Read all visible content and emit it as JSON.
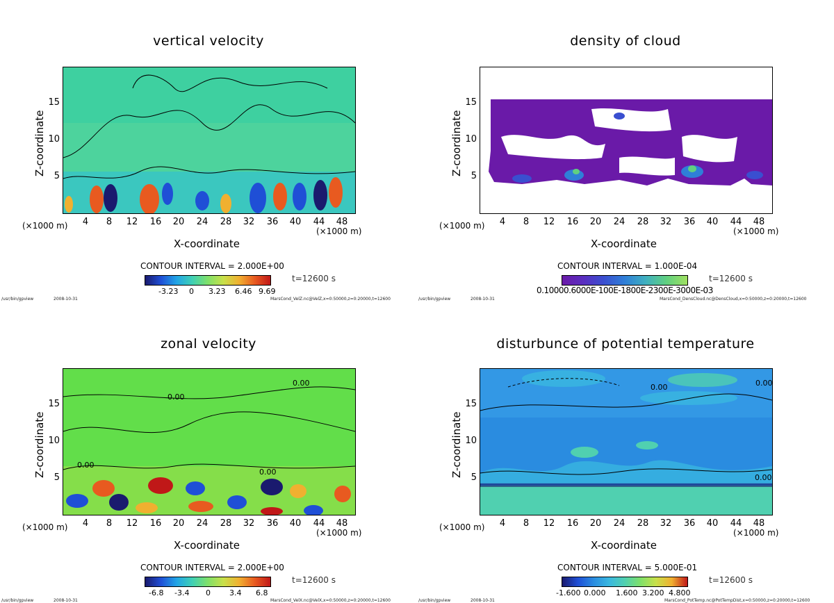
{
  "footer_program": "/usr/bin/gpview",
  "footer_date": "2008-10-31",
  "x_axis": {
    "label": "X-coordinate",
    "unit_left": "(×1000 m)",
    "unit_right": "(×1000 m)",
    "ticks": [
      "4",
      "8",
      "12",
      "16",
      "20",
      "24",
      "28",
      "32",
      "36",
      "40",
      "44",
      "48"
    ]
  },
  "y_axis": {
    "label": "Z-coordinate",
    "ticks": [
      "5",
      "10",
      "15"
    ]
  },
  "time_label": "t=12600 s",
  "chart_data": [
    {
      "type": "heatmap",
      "title": "vertical velocity",
      "xlabel": "X-coordinate",
      "ylabel": "Z-coordinate",
      "xlim": [
        0,
        50
      ],
      "ylim": [
        0,
        20
      ],
      "contour_interval": "CONTOUR INTERVAL = 2.000E+00",
      "colorbar_ticks": [
        "-3.23",
        "0",
        "3.23",
        "6.46",
        "9.69"
      ],
      "colormap": [
        "#1a1a6e",
        "#1f4fd6",
        "#21a4e6",
        "#3fd0b5",
        "#7fe06a",
        "#c8e04a",
        "#f0b030",
        "#e85a20",
        "#c01818"
      ],
      "background": "#3ed0a0",
      "footer_file": "MarsCond_VelZ.nc@VelZ,x=0:50000,z=0:20000,t=12600"
    },
    {
      "type": "heatmap",
      "title": "density of cloud",
      "xlabel": "X-coordinate",
      "ylabel": "Z-coordinate",
      "xlim": [
        0,
        50
      ],
      "ylim": [
        0,
        20
      ],
      "contour_interval": "CONTOUR INTERVAL = 1.000E-04",
      "colorbar_ticks_text": "0.10000.6000E-100E-1800E-2300E-3000E-03",
      "colormap": [
        "#6a1aa8",
        "#5a2dc0",
        "#3a4fd0",
        "#2f7fd8",
        "#3fb0c0",
        "#60d080",
        "#a0e060"
      ],
      "background": "#ffffff",
      "footer_file": "MarsCond_DensCloud.nc@DensCloud,x=0:50000,z=0:20000,t=12600"
    },
    {
      "type": "heatmap",
      "title": "zonal velocity",
      "xlabel": "X-coordinate",
      "ylabel": "Z-coordinate",
      "xlim": [
        0,
        50
      ],
      "ylim": [
        0,
        20
      ],
      "contour_interval": "CONTOUR INTERVAL = 2.000E+00",
      "colorbar_ticks": [
        "-6.8",
        "-3.4",
        "0",
        "3.4",
        "6.8"
      ],
      "contour_labels": [
        "0.00",
        "0.00",
        "0.00",
        "0.00"
      ],
      "colormap": [
        "#1a1a6e",
        "#1f4fd6",
        "#21a4e6",
        "#3fd0b5",
        "#7fe06a",
        "#c8e04a",
        "#f0b030",
        "#e85a20",
        "#c01818"
      ],
      "background": "#62de4a",
      "footer_file": "MarsCond_VelX.nc@VelX,x=0:50000,z=0:20000,t=12600"
    },
    {
      "type": "heatmap",
      "title": "disturbunce of potential temperature",
      "xlabel": "X-coordinate",
      "ylabel": "Z-coordinate",
      "xlim": [
        0,
        50
      ],
      "ylim": [
        0,
        20
      ],
      "contour_interval": "CONTOUR INTERVAL = 5.000E-01",
      "colorbar_ticks": [
        "-1.600",
        "0.000",
        "1.600",
        "3.200",
        "4.800"
      ],
      "contour_labels": [
        "0.00",
        "0.00",
        "0.00"
      ],
      "colormap": [
        "#1a1a6e",
        "#1f4fd6",
        "#2a8ce0",
        "#3ab8e0",
        "#50d0b0",
        "#7fe06a",
        "#c8e04a",
        "#f0b030",
        "#c01818"
      ],
      "background": "#2a8ce0",
      "footer_file": "MarsCond_PotTemp.nc@PotTempDist,x=0:50000,z=0:20000,t=12600"
    }
  ]
}
